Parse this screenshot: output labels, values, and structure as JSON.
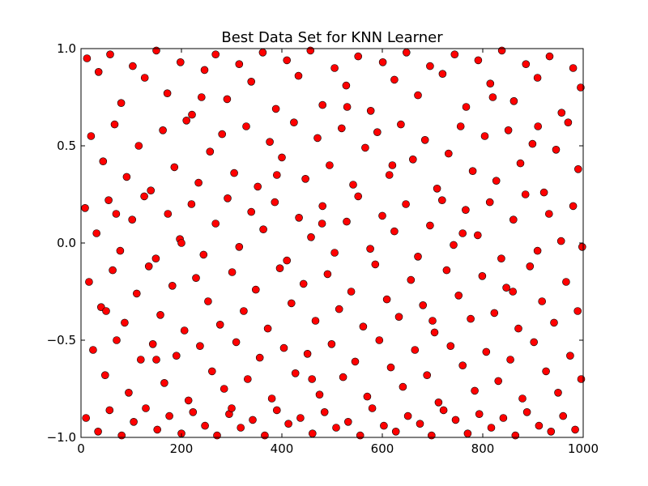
{
  "chart_data": {
    "type": "scatter",
    "title": "Best Data Set for KNN Learner",
    "xlabel": "",
    "ylabel": "",
    "xlim": [
      0,
      1000
    ],
    "ylim": [
      -1.0,
      1.0
    ],
    "x_ticks": [
      0,
      200,
      400,
      600,
      800,
      1000
    ],
    "x_tick_labels": [
      "0",
      "200",
      "400",
      "600",
      "800",
      "1000"
    ],
    "y_ticks": [
      -1.0,
      -0.5,
      0.0,
      0.5,
      1.0
    ],
    "y_tick_labels": [
      "−1.0",
      "−0.5",
      "0.0",
      "0.5",
      "1.0"
    ],
    "grid": false,
    "marker": {
      "color": "#ff0000",
      "edge_color": "#000000",
      "shape": "circle"
    },
    "series": [
      {
        "values_note": "",
        "points": [
          [
            12,
            0.95
          ],
          [
            35,
            0.88
          ],
          [
            58,
            0.97
          ],
          [
            80,
            0.72
          ],
          [
            103,
            0.91
          ],
          [
            127,
            0.85
          ],
          [
            150,
            0.99
          ],
          [
            172,
            0.77
          ],
          [
            198,
            0.93
          ],
          [
            221,
            0.66
          ],
          [
            246,
            0.89
          ],
          [
            268,
            0.97
          ],
          [
            291,
            0.74
          ],
          [
            315,
            0.92
          ],
          [
            339,
            0.83
          ],
          [
            362,
            0.98
          ],
          [
            388,
            0.69
          ],
          [
            410,
            0.94
          ],
          [
            433,
            0.86
          ],
          [
            457,
            0.99
          ],
          [
            481,
            0.71
          ],
          [
            505,
            0.9
          ],
          [
            528,
            0.81
          ],
          [
            552,
            0.96
          ],
          [
            577,
            0.68
          ],
          [
            601,
            0.93
          ],
          [
            624,
            0.84
          ],
          [
            648,
            0.98
          ],
          [
            671,
            0.76
          ],
          [
            695,
            0.91
          ],
          [
            720,
            0.87
          ],
          [
            744,
            0.97
          ],
          [
            767,
            0.7
          ],
          [
            791,
            0.94
          ],
          [
            815,
            0.82
          ],
          [
            838,
            0.99
          ],
          [
            862,
            0.73
          ],
          [
            886,
            0.92
          ],
          [
            909,
            0.85
          ],
          [
            933,
            0.96
          ],
          [
            957,
            0.67
          ],
          [
            980,
            0.9
          ],
          [
            995,
            0.8
          ],
          [
            20,
            0.55
          ],
          [
            44,
            0.42
          ],
          [
            67,
            0.61
          ],
          [
            91,
            0.34
          ],
          [
            115,
            0.5
          ],
          [
            139,
            0.27
          ],
          [
            163,
            0.58
          ],
          [
            186,
            0.39
          ],
          [
            210,
            0.63
          ],
          [
            234,
            0.31
          ],
          [
            257,
            0.47
          ],
          [
            281,
            0.56
          ],
          [
            305,
            0.36
          ],
          [
            329,
            0.6
          ],
          [
            352,
            0.29
          ],
          [
            376,
            0.52
          ],
          [
            400,
            0.44
          ],
          [
            424,
            0.62
          ],
          [
            447,
            0.33
          ],
          [
            471,
            0.54
          ],
          [
            495,
            0.4
          ],
          [
            519,
            0.59
          ],
          [
            542,
            0.3
          ],
          [
            566,
            0.49
          ],
          [
            590,
            0.57
          ],
          [
            614,
            0.35
          ],
          [
            637,
            0.61
          ],
          [
            661,
            0.43
          ],
          [
            685,
            0.53
          ],
          [
            709,
            0.28
          ],
          [
            732,
            0.46
          ],
          [
            756,
            0.6
          ],
          [
            780,
            0.37
          ],
          [
            804,
            0.55
          ],
          [
            827,
            0.32
          ],
          [
            851,
            0.58
          ],
          [
            875,
            0.41
          ],
          [
            899,
            0.51
          ],
          [
            922,
            0.26
          ],
          [
            946,
            0.48
          ],
          [
            970,
            0.62
          ],
          [
            990,
            0.38
          ],
          [
            8,
            0.18
          ],
          [
            31,
            0.05
          ],
          [
            55,
            0.22
          ],
          [
            78,
            -0.04
          ],
          [
            102,
            0.12
          ],
          [
            126,
            0.24
          ],
          [
            149,
            -0.08
          ],
          [
            173,
            0.15
          ],
          [
            197,
            0.02
          ],
          [
            220,
            0.2
          ],
          [
            244,
            -0.06
          ],
          [
            268,
            0.1
          ],
          [
            292,
            0.23
          ],
          [
            315,
            -0.02
          ],
          [
            339,
            0.16
          ],
          [
            363,
            0.07
          ],
          [
            386,
            0.21
          ],
          [
            410,
            -0.09
          ],
          [
            434,
            0.13
          ],
          [
            458,
            0.03
          ],
          [
            481,
            0.19
          ],
          [
            505,
            -0.05
          ],
          [
            529,
            0.11
          ],
          [
            552,
            0.24
          ],
          [
            576,
            -0.03
          ],
          [
            600,
            0.14
          ],
          [
            624,
            0.06
          ],
          [
            647,
            0.2
          ],
          [
            671,
            -0.07
          ],
          [
            695,
            0.09
          ],
          [
            719,
            0.22
          ],
          [
            742,
            -0.01
          ],
          [
            766,
            0.17
          ],
          [
            790,
            0.04
          ],
          [
            814,
            0.21
          ],
          [
            837,
            -0.08
          ],
          [
            861,
            0.12
          ],
          [
            885,
            0.25
          ],
          [
            909,
            -0.04
          ],
          [
            932,
            0.15
          ],
          [
            956,
            0.01
          ],
          [
            980,
            0.19
          ],
          [
            998,
            -0.02
          ],
          [
            16,
            -0.2
          ],
          [
            40,
            -0.33
          ],
          [
            63,
            -0.14
          ],
          [
            87,
            -0.41
          ],
          [
            111,
            -0.26
          ],
          [
            135,
            -0.12
          ],
          [
            158,
            -0.37
          ],
          [
            182,
            -0.22
          ],
          [
            206,
            -0.45
          ],
          [
            229,
            -0.18
          ],
          [
            253,
            -0.3
          ],
          [
            277,
            -0.42
          ],
          [
            301,
            -0.15
          ],
          [
            324,
            -0.35
          ],
          [
            348,
            -0.24
          ],
          [
            372,
            -0.44
          ],
          [
            396,
            -0.13
          ],
          [
            419,
            -0.31
          ],
          [
            443,
            -0.21
          ],
          [
            467,
            -0.4
          ],
          [
            491,
            -0.16
          ],
          [
            514,
            -0.34
          ],
          [
            538,
            -0.25
          ],
          [
            562,
            -0.43
          ],
          [
            586,
            -0.11
          ],
          [
            609,
            -0.29
          ],
          [
            633,
            -0.38
          ],
          [
            657,
            -0.19
          ],
          [
            681,
            -0.32
          ],
          [
            704,
            -0.46
          ],
          [
            728,
            -0.14
          ],
          [
            752,
            -0.27
          ],
          [
            776,
            -0.39
          ],
          [
            799,
            -0.17
          ],
          [
            823,
            -0.36
          ],
          [
            847,
            -0.23
          ],
          [
            871,
            -0.44
          ],
          [
            894,
            -0.12
          ],
          [
            918,
            -0.3
          ],
          [
            942,
            -0.41
          ],
          [
            966,
            -0.2
          ],
          [
            989,
            -0.35
          ],
          [
            24,
            -0.55
          ],
          [
            48,
            -0.68
          ],
          [
            71,
            -0.5
          ],
          [
            95,
            -0.77
          ],
          [
            119,
            -0.6
          ],
          [
            143,
            -0.52
          ],
          [
            166,
            -0.72
          ],
          [
            190,
            -0.58
          ],
          [
            214,
            -0.81
          ],
          [
            237,
            -0.53
          ],
          [
            261,
            -0.66
          ],
          [
            285,
            -0.75
          ],
          [
            309,
            -0.51
          ],
          [
            332,
            -0.7
          ],
          [
            356,
            -0.59
          ],
          [
            380,
            -0.8
          ],
          [
            404,
            -0.54
          ],
          [
            427,
            -0.67
          ],
          [
            451,
            -0.57
          ],
          [
            475,
            -0.78
          ],
          [
            499,
            -0.52
          ],
          [
            522,
            -0.69
          ],
          [
            546,
            -0.61
          ],
          [
            570,
            -0.79
          ],
          [
            594,
            -0.5
          ],
          [
            617,
            -0.64
          ],
          [
            641,
            -0.74
          ],
          [
            665,
            -0.55
          ],
          [
            689,
            -0.68
          ],
          [
            712,
            -0.82
          ],
          [
            736,
            -0.53
          ],
          [
            760,
            -0.63
          ],
          [
            784,
            -0.76
          ],
          [
            807,
            -0.56
          ],
          [
            831,
            -0.71
          ],
          [
            855,
            -0.6
          ],
          [
            879,
            -0.8
          ],
          [
            902,
            -0.51
          ],
          [
            926,
            -0.66
          ],
          [
            950,
            -0.77
          ],
          [
            974,
            -0.58
          ],
          [
            996,
            -0.7
          ],
          [
            10,
            -0.9
          ],
          [
            34,
            -0.97
          ],
          [
            57,
            -0.86
          ],
          [
            81,
            -0.99
          ],
          [
            105,
            -0.92
          ],
          [
            129,
            -0.85
          ],
          [
            152,
            -0.96
          ],
          [
            176,
            -0.89
          ],
          [
            200,
            -0.98
          ],
          [
            223,
            -0.87
          ],
          [
            247,
            -0.94
          ],
          [
            271,
            -0.99
          ],
          [
            295,
            -0.88
          ],
          [
            318,
            -0.95
          ],
          [
            342,
            -0.91
          ],
          [
            366,
            -0.99
          ],
          [
            390,
            -0.86
          ],
          [
            413,
            -0.93
          ],
          [
            437,
            -0.9
          ],
          [
            461,
            -0.98
          ],
          [
            485,
            -0.87
          ],
          [
            508,
            -0.95
          ],
          [
            532,
            -0.92
          ],
          [
            556,
            -0.99
          ],
          [
            580,
            -0.85
          ],
          [
            603,
            -0.94
          ],
          [
            627,
            -0.97
          ],
          [
            651,
            -0.89
          ],
          [
            675,
            -0.93
          ],
          [
            698,
            -0.99
          ],
          [
            722,
            -0.86
          ],
          [
            746,
            -0.91
          ],
          [
            770,
            -0.98
          ],
          [
            793,
            -0.88
          ],
          [
            817,
            -0.95
          ],
          [
            841,
            -0.9
          ],
          [
            865,
            -0.99
          ],
          [
            888,
            -0.87
          ],
          [
            912,
            -0.94
          ],
          [
            936,
            -0.97
          ],
          [
            960,
            -0.89
          ],
          [
            984,
            -0.96
          ],
          [
            70,
            0.15
          ],
          [
            240,
            0.75
          ],
          [
            460,
            -0.7
          ],
          [
            620,
            0.4
          ],
          [
            860,
            -0.25
          ],
          [
            150,
            -0.6
          ],
          [
            390,
            0.35
          ],
          [
            700,
            -0.4
          ],
          [
            530,
            0.7
          ],
          [
            910,
            0.6
          ],
          [
            300,
            -0.85
          ],
          [
            760,
            0.05
          ],
          [
            50,
            -0.35
          ],
          [
            480,
            0.1
          ],
          [
            820,
            0.75
          ],
          [
            200,
            0.0
          ]
        ]
      }
    ]
  }
}
